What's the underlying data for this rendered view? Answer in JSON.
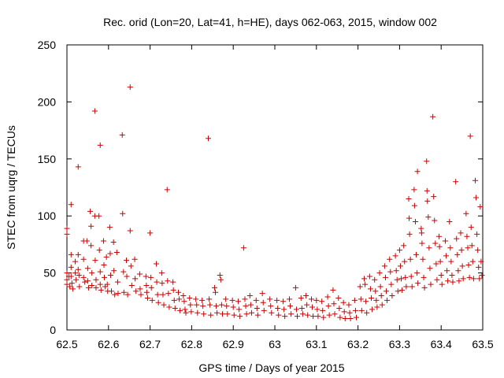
{
  "chart_data": {
    "type": "scatter",
    "title": "Rec. orid (Lon=20, Lat=41, h=HE), days 062-063, 2015, window 002",
    "xlabel": "GPS time / Days of year 2015",
    "ylabel": "STEC from uqrg / TECUs",
    "xlim": [
      62.5,
      63.5
    ],
    "ylim": [
      0,
      250
    ],
    "xticks": [
      "62.5",
      "62.6",
      "62.7",
      "62.8",
      "62.9",
      "63",
      "63.1",
      "63.2",
      "63.3",
      "63.4",
      "63.5"
    ],
    "yticks": [
      "0",
      "50",
      "100",
      "150",
      "200",
      "250"
    ],
    "grid": false,
    "marker": "+",
    "color": "#cc0000",
    "series": [
      {
        "name": "STEC",
        "points": [
          [
            62.5,
            89
          ],
          [
            62.5,
            84
          ],
          [
            62.5,
            50
          ],
          [
            62.5,
            44
          ],
          [
            62.5,
            40
          ],
          [
            62.505,
            47
          ],
          [
            62.507,
            38
          ],
          [
            62.51,
            110
          ],
          [
            62.51,
            66
          ],
          [
            62.51,
            55
          ],
          [
            62.51,
            47
          ],
          [
            62.512,
            41
          ],
          [
            62.514,
            36
          ],
          [
            62.52,
            60
          ],
          [
            62.52,
            50
          ],
          [
            62.522,
            44
          ],
          [
            62.527,
            143
          ],
          [
            62.527,
            66
          ],
          [
            62.527,
            53
          ],
          [
            62.529,
            48
          ],
          [
            62.53,
            38
          ],
          [
            62.54,
            78
          ],
          [
            62.54,
            62
          ],
          [
            62.54,
            46
          ],
          [
            62.543,
            42
          ],
          [
            62.548,
            78
          ],
          [
            62.55,
            54
          ],
          [
            62.55,
            43
          ],
          [
            62.552,
            37
          ],
          [
            62.556,
            104
          ],
          [
            62.558,
            91
          ],
          [
            62.558,
            74
          ],
          [
            62.56,
            50
          ],
          [
            62.56,
            39
          ],
          [
            62.567,
            192
          ],
          [
            62.567,
            100
          ],
          [
            62.568,
            61
          ],
          [
            62.57,
            44
          ],
          [
            62.57,
            37
          ],
          [
            62.577,
            100
          ],
          [
            62.578,
            70
          ],
          [
            62.58,
            51
          ],
          [
            62.58,
            40
          ],
          [
            62.58,
            162
          ],
          [
            62.582,
            35
          ],
          [
            62.588,
            78
          ],
          [
            62.589,
            57
          ],
          [
            62.59,
            46
          ],
          [
            62.592,
            38
          ],
          [
            62.595,
            64
          ],
          [
            62.597,
            40
          ],
          [
            62.598,
            34
          ],
          [
            62.603,
            90
          ],
          [
            62.604,
            67
          ],
          [
            62.605,
            48
          ],
          [
            62.607,
            34
          ],
          [
            62.612,
            77
          ],
          [
            62.613,
            52
          ],
          [
            62.615,
            31
          ],
          [
            62.62,
            68
          ],
          [
            62.622,
            42
          ],
          [
            62.623,
            32
          ],
          [
            62.633,
            171
          ],
          [
            62.634,
            102
          ],
          [
            62.636,
            51
          ],
          [
            62.637,
            33
          ],
          [
            62.643,
            61
          ],
          [
            62.644,
            47
          ],
          [
            62.646,
            31
          ],
          [
            62.652,
            213
          ],
          [
            62.652,
            87
          ],
          [
            62.654,
            56
          ],
          [
            62.656,
            39
          ],
          [
            62.663,
            62
          ],
          [
            62.664,
            45
          ],
          [
            62.666,
            34
          ],
          [
            62.675,
            49
          ],
          [
            62.676,
            36
          ],
          [
            62.678,
            31
          ],
          [
            62.69,
            47
          ],
          [
            62.691,
            39
          ],
          [
            62.692,
            33
          ],
          [
            62.694,
            28
          ],
          [
            62.7,
            85
          ],
          [
            62.702,
            46
          ],
          [
            62.703,
            37
          ],
          [
            62.705,
            26
          ],
          [
            62.715,
            58
          ],
          [
            62.716,
            42
          ],
          [
            62.718,
            31
          ],
          [
            62.72,
            24
          ],
          [
            62.728,
            50
          ],
          [
            62.729,
            41
          ],
          [
            62.731,
            31
          ],
          [
            62.733,
            22
          ],
          [
            62.741,
            123
          ],
          [
            62.742,
            43
          ],
          [
            62.744,
            32
          ],
          [
            62.746,
            20
          ],
          [
            62.755,
            42
          ],
          [
            62.756,
            35
          ],
          [
            62.758,
            26
          ],
          [
            62.76,
            19
          ],
          [
            62.768,
            33
          ],
          [
            62.77,
            27
          ],
          [
            62.772,
            17
          ],
          [
            62.78,
            30
          ],
          [
            62.782,
            25
          ],
          [
            62.784,
            18
          ],
          [
            62.786,
            15
          ],
          [
            62.795,
            28
          ],
          [
            62.797,
            22
          ],
          [
            62.799,
            16
          ],
          [
            62.81,
            27
          ],
          [
            62.812,
            22
          ],
          [
            62.814,
            15
          ],
          [
            62.825,
            26
          ],
          [
            62.827,
            21
          ],
          [
            62.829,
            14
          ],
          [
            62.84,
            168
          ],
          [
            62.842,
            27
          ],
          [
            62.844,
            22
          ],
          [
            62.846,
            13
          ],
          [
            62.855,
            37
          ],
          [
            62.857,
            33
          ],
          [
            62.859,
            21
          ],
          [
            62.861,
            15
          ],
          [
            62.868,
            48
          ],
          [
            62.87,
            44
          ],
          [
            62.872,
            22
          ],
          [
            62.874,
            14
          ],
          [
            62.882,
            27
          ],
          [
            62.884,
            21
          ],
          [
            62.886,
            14
          ],
          [
            62.898,
            26
          ],
          [
            62.9,
            20
          ],
          [
            62.902,
            13
          ],
          [
            62.912,
            25
          ],
          [
            62.914,
            18
          ],
          [
            62.916,
            12
          ],
          [
            62.925,
            72
          ],
          [
            62.928,
            27
          ],
          [
            62.93,
            21
          ],
          [
            62.932,
            14
          ],
          [
            62.94,
            30
          ],
          [
            62.942,
            22
          ],
          [
            62.944,
            15
          ],
          [
            62.955,
            26
          ],
          [
            62.957,
            19
          ],
          [
            62.959,
            13
          ],
          [
            62.97,
            32
          ],
          [
            62.972,
            24
          ],
          [
            62.974,
            17
          ],
          [
            62.988,
            27
          ],
          [
            62.99,
            21
          ],
          [
            62.992,
            15
          ],
          [
            63.005,
            26
          ],
          [
            63.007,
            19
          ],
          [
            63.009,
            13
          ],
          [
            63.02,
            25
          ],
          [
            63.022,
            18
          ],
          [
            63.024,
            12
          ],
          [
            63.035,
            27
          ],
          [
            63.037,
            21
          ],
          [
            63.039,
            14
          ],
          [
            63.05,
            37
          ],
          [
            63.052,
            18
          ],
          [
            63.054,
            12
          ],
          [
            63.063,
            28
          ],
          [
            63.065,
            19
          ],
          [
            63.067,
            14
          ],
          [
            63.075,
            30
          ],
          [
            63.077,
            22
          ],
          [
            63.079,
            13
          ],
          [
            63.088,
            27
          ],
          [
            63.09,
            20
          ],
          [
            63.092,
            12
          ],
          [
            63.1,
            26
          ],
          [
            63.102,
            18
          ],
          [
            63.104,
            12
          ],
          [
            63.113,
            25
          ],
          [
            63.115,
            17
          ],
          [
            63.117,
            11
          ],
          [
            63.127,
            29
          ],
          [
            63.129,
            21
          ],
          [
            63.131,
            13
          ],
          [
            63.14,
            35
          ],
          [
            63.142,
            23
          ],
          [
            63.144,
            14
          ],
          [
            63.153,
            28
          ],
          [
            63.155,
            19
          ],
          [
            63.157,
            11
          ],
          [
            63.165,
            24
          ],
          [
            63.167,
            16
          ],
          [
            63.169,
            10
          ],
          [
            63.178,
            22
          ],
          [
            63.18,
            15
          ],
          [
            63.182,
            10
          ],
          [
            63.192,
            26
          ],
          [
            63.194,
            17
          ],
          [
            63.196,
            11
          ],
          [
            63.205,
            38
          ],
          [
            63.207,
            27
          ],
          [
            63.209,
            17
          ],
          [
            63.215,
            45
          ],
          [
            63.217,
            40
          ],
          [
            63.219,
            25
          ],
          [
            63.221,
            15
          ],
          [
            63.228,
            47
          ],
          [
            63.23,
            36
          ],
          [
            63.232,
            28
          ],
          [
            63.234,
            18
          ],
          [
            63.24,
            44
          ],
          [
            63.242,
            34
          ],
          [
            63.244,
            26
          ],
          [
            63.246,
            20
          ],
          [
            63.252,
            50
          ],
          [
            63.254,
            38
          ],
          [
            63.256,
            30
          ],
          [
            63.258,
            22
          ],
          [
            63.264,
            56
          ],
          [
            63.266,
            46
          ],
          [
            63.268,
            34
          ],
          [
            63.27,
            26
          ],
          [
            63.276,
            62
          ],
          [
            63.278,
            51
          ],
          [
            63.28,
            40
          ],
          [
            63.282,
            30
          ],
          [
            63.29,
            65
          ],
          [
            63.292,
            52
          ],
          [
            63.294,
            44
          ],
          [
            63.296,
            34
          ],
          [
            63.3,
            70
          ],
          [
            63.302,
            56
          ],
          [
            63.304,
            45
          ],
          [
            63.306,
            35
          ],
          [
            63.31,
            74
          ],
          [
            63.312,
            60
          ],
          [
            63.314,
            46
          ],
          [
            63.316,
            38
          ],
          [
            63.322,
            115
          ],
          [
            63.323,
            98
          ],
          [
            63.324,
            84
          ],
          [
            63.326,
            62
          ],
          [
            63.328,
            47
          ],
          [
            63.33,
            38
          ],
          [
            63.335,
            123
          ],
          [
            63.336,
            109
          ],
          [
            63.338,
            95
          ],
          [
            63.34,
            66
          ],
          [
            63.342,
            50
          ],
          [
            63.344,
            41
          ],
          [
            63.343,
            139
          ],
          [
            63.352,
            89
          ],
          [
            63.353,
            85
          ],
          [
            63.354,
            76
          ],
          [
            63.356,
            62
          ],
          [
            63.358,
            46
          ],
          [
            63.36,
            37
          ],
          [
            63.365,
            148
          ],
          [
            63.366,
            122
          ],
          [
            63.367,
            113
          ],
          [
            63.369,
            99
          ],
          [
            63.371,
            72
          ],
          [
            63.373,
            54
          ],
          [
            63.375,
            40
          ],
          [
            63.38,
            187
          ],
          [
            63.382,
            117
          ],
          [
            63.384,
            96
          ],
          [
            63.386,
            76
          ],
          [
            63.388,
            58
          ],
          [
            63.39,
            44
          ],
          [
            63.395,
            82
          ],
          [
            63.396,
            73
          ],
          [
            63.398,
            60
          ],
          [
            63.4,
            48
          ],
          [
            63.402,
            40
          ],
          [
            63.41,
            78
          ],
          [
            63.412,
            65
          ],
          [
            63.414,
            52
          ],
          [
            63.416,
            43
          ],
          [
            63.42,
            95
          ],
          [
            63.422,
            72
          ],
          [
            63.424,
            60
          ],
          [
            63.426,
            48
          ],
          [
            63.428,
            42
          ],
          [
            63.435,
            130
          ],
          [
            63.437,
            80
          ],
          [
            63.439,
            66
          ],
          [
            63.441,
            52
          ],
          [
            63.443,
            43
          ],
          [
            63.447,
            85
          ],
          [
            63.449,
            70
          ],
          [
            63.451,
            56
          ],
          [
            63.453,
            45
          ],
          [
            63.46,
            102
          ],
          [
            63.462,
            82
          ],
          [
            63.464,
            72
          ],
          [
            63.466,
            57
          ],
          [
            63.468,
            46
          ],
          [
            63.47,
            170
          ],
          [
            63.472,
            90
          ],
          [
            63.474,
            74
          ],
          [
            63.476,
            60
          ],
          [
            63.478,
            45
          ],
          [
            63.482,
            131
          ],
          [
            63.484,
            116
          ],
          [
            63.486,
            84
          ],
          [
            63.488,
            70
          ],
          [
            63.49,
            55
          ],
          [
            63.492,
            45
          ],
          [
            63.494,
            108
          ],
          [
            63.496,
            60
          ],
          [
            63.498,
            48
          ]
        ]
      }
    ]
  }
}
